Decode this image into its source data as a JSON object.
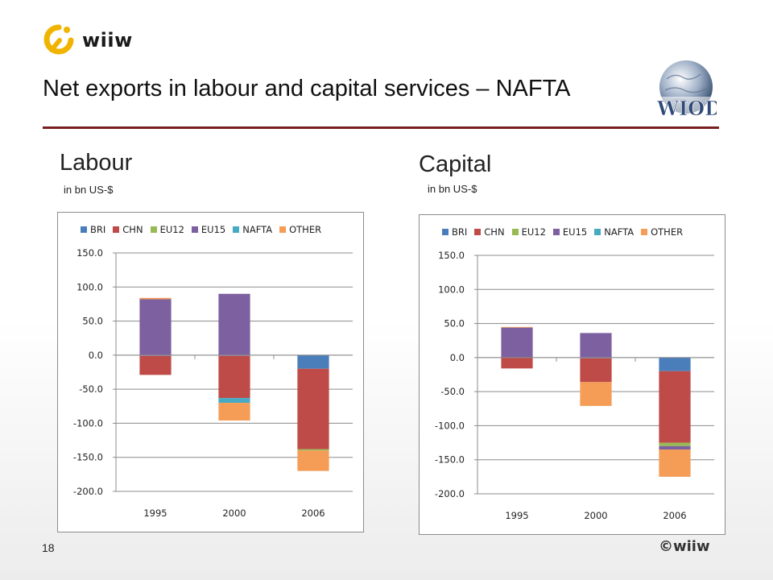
{
  "logo": {
    "text": "wiiw"
  },
  "slide_title": "Net exports in labour and capital services – NAFTA",
  "wiod_logo": {
    "text": "WIOD"
  },
  "panels": [
    {
      "title": "Labour",
      "unit": "in bn US-$"
    },
    {
      "title": "Capital",
      "unit": "in bn US-$"
    }
  ],
  "footer": {
    "page_number": "18",
    "brand": "©wiiw"
  },
  "colors": {
    "BRI": "#4a7ebb",
    "CHN": "#be4b48",
    "EU12": "#98b954",
    "EU15": "#7d60a0",
    "NAFTA": "#46aac5",
    "OTHER": "#f59d56"
  },
  "chart_data": [
    {
      "type": "bar",
      "stacked": true,
      "title": "Labour",
      "categories": [
        "1995",
        "2000",
        "2006"
      ],
      "ylim": [
        -200,
        150
      ],
      "yticks": [
        150,
        100,
        50,
        0,
        -50,
        -100,
        -150,
        -200
      ],
      "ytick_labels": [
        "150.0",
        "100.0",
        "50.0",
        "0.0",
        "-50.0",
        "-100.0",
        "-150.0",
        "-200.0"
      ],
      "legend": "top",
      "series": [
        {
          "name": "BRI",
          "values": [
            -1,
            -1,
            -20
          ]
        },
        {
          "name": "CHN",
          "values": [
            -28,
            -62,
            -118
          ]
        },
        {
          "name": "EU12",
          "values": [
            0,
            0,
            -2
          ]
        },
        {
          "name": "EU15",
          "values": [
            82,
            90,
            0
          ]
        },
        {
          "name": "NAFTA",
          "values": [
            0,
            -7,
            0
          ]
        },
        {
          "name": "OTHER",
          "values": [
            2,
            -26,
            -30
          ]
        }
      ]
    },
    {
      "type": "bar",
      "stacked": true,
      "title": "Capital",
      "categories": [
        "1995",
        "2000",
        "2006"
      ],
      "ylim": [
        -200,
        150
      ],
      "yticks": [
        150,
        100,
        50,
        0,
        -50,
        -100,
        -150,
        -200
      ],
      "ytick_labels": [
        "150.0",
        "100.0",
        "50.0",
        "0.0",
        "-50.0",
        "-100.0",
        "-150.0",
        "-200.0"
      ],
      "legend": "top",
      "series": [
        {
          "name": "BRI",
          "values": [
            0,
            -1,
            -20
          ]
        },
        {
          "name": "CHN",
          "values": [
            -16,
            -35,
            -105
          ]
        },
        {
          "name": "EU12",
          "values": [
            0,
            0,
            -5
          ]
        },
        {
          "name": "EU15",
          "values": [
            44,
            36,
            -5
          ]
        },
        {
          "name": "NAFTA",
          "values": [
            0,
            0,
            0
          ]
        },
        {
          "name": "OTHER",
          "values": [
            1,
            -35,
            -40
          ]
        }
      ]
    }
  ]
}
